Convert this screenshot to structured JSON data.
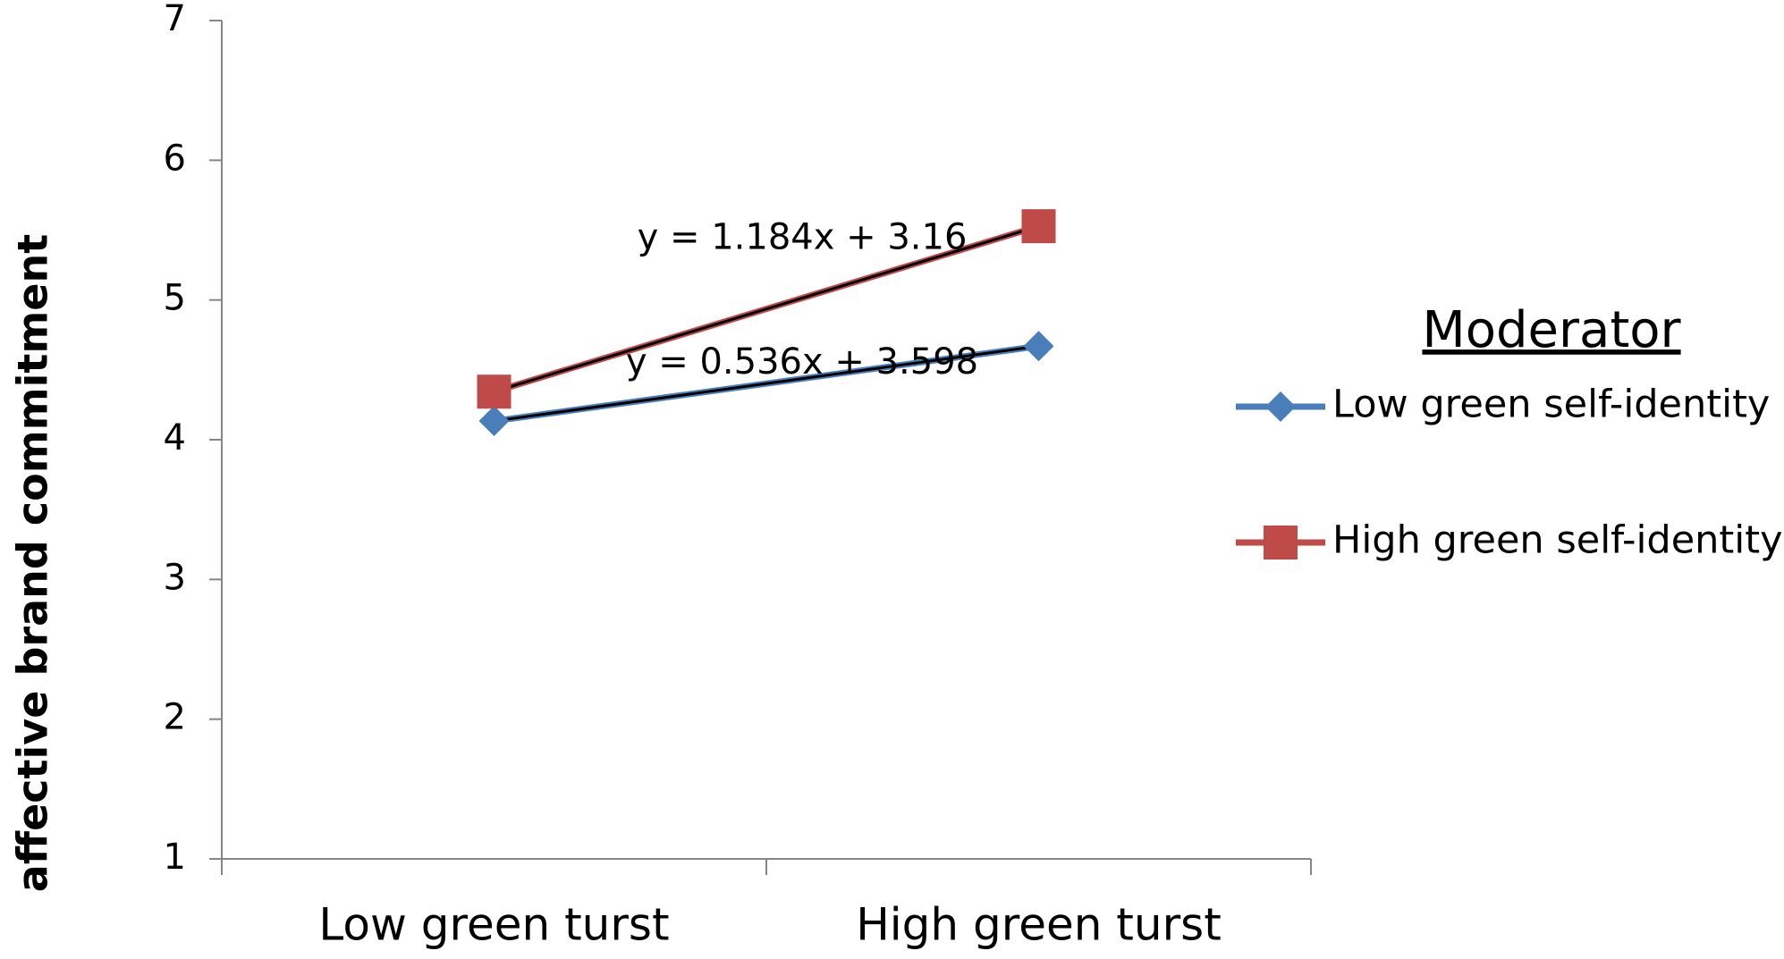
{
  "chart_data": {
    "type": "line",
    "y_label": "affective brand commitment",
    "categories": [
      "Low green turst",
      "High green turst"
    ],
    "series": [
      {
        "name": "Low green self-identity",
        "color": "#4a7ebb",
        "marker": "diamond",
        "values": [
          4.134,
          4.67
        ],
        "trendline_label": "y = 0.536x + 3.598"
      },
      {
        "name": "High green self-identity",
        "color": "#be4b48",
        "marker": "square",
        "values": [
          4.344,
          5.528
        ],
        "trendline_label": "y = 1.184x + 3.16"
      }
    ],
    "legend_title": "Moderator",
    "legend": "right",
    "ylim": [
      1,
      7
    ],
    "yticks": [
      1,
      2,
      3,
      4,
      5,
      6,
      7
    ],
    "grid": false
  }
}
